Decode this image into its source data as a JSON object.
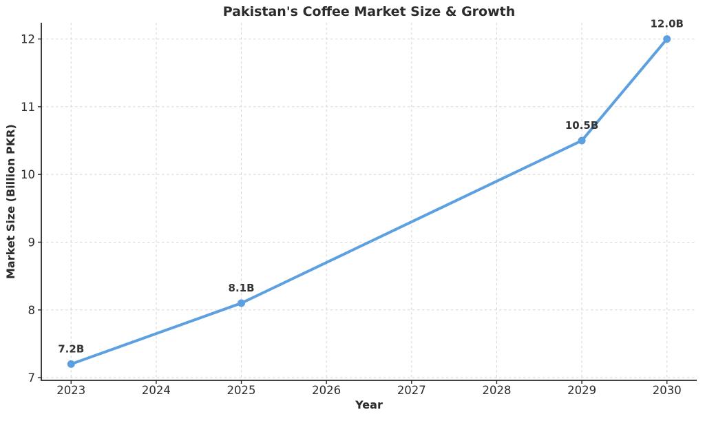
{
  "chart_data": {
    "type": "line",
    "title": "Pakistan's Coffee Market Size & Growth",
    "xlabel": "Year",
    "ylabel": "Market Size (Billion PKR)",
    "x": [
      2023,
      2025,
      2029,
      2030
    ],
    "values": [
      7.2,
      8.1,
      10.5,
      12.0
    ],
    "point_labels": [
      "7.2B",
      "8.1B",
      "10.5B",
      "12.0B"
    ],
    "x_ticks": [
      "2023",
      "2024",
      "2025",
      "2026",
      "2027",
      "2028",
      "2029",
      "2030"
    ],
    "x_tick_values": [
      2023,
      2024,
      2025,
      2026,
      2027,
      2028,
      2029,
      2030
    ],
    "y_ticks": [
      "7",
      "8",
      "9",
      "10",
      "11",
      "12"
    ],
    "y_tick_values": [
      7,
      8,
      9,
      10,
      11,
      12
    ],
    "xlim": [
      2022.65,
      2030.35
    ],
    "ylim": [
      6.96,
      12.24
    ],
    "grid": "dashed",
    "legend": "none",
    "colors": {
      "line": "#5da0e0",
      "marker": "#5da0e0",
      "grid": "#d5d5d5",
      "axis": "#262626",
      "title": "#2b2b2b",
      "tick_label": "#2b2b2b",
      "point_label": "#333333",
      "background": "#ffffff"
    }
  }
}
